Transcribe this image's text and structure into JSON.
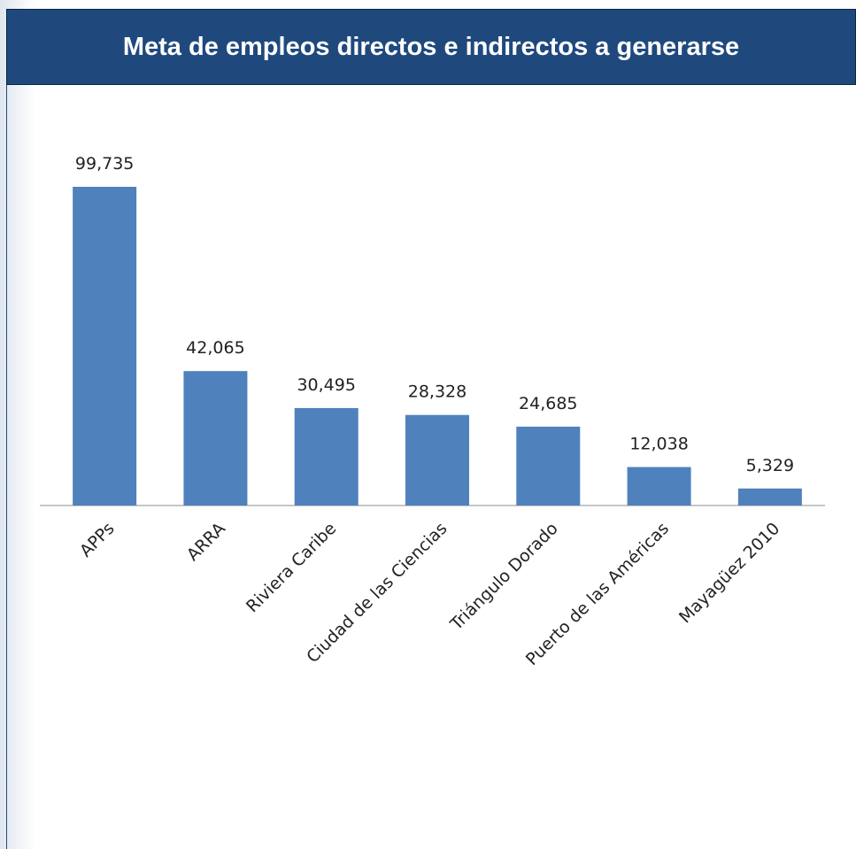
{
  "chart_data": {
    "type": "bar",
    "title": "Meta de empleos directos e indirectos a generarse",
    "categories": [
      "APPs",
      "ARRA",
      "Riviera Caribe",
      "Ciudad de las Ciencias",
      "Triángulo Dorado",
      "Puerto de las Américas",
      "Mayagüez 2010"
    ],
    "values": [
      99735,
      42065,
      30495,
      28328,
      24685,
      12038,
      5329
    ],
    "value_labels": [
      "99,735",
      "42,065",
      "30,495",
      "28,328",
      "24,685",
      "12,038",
      "5,329"
    ],
    "color": "#4f81bd"
  }
}
